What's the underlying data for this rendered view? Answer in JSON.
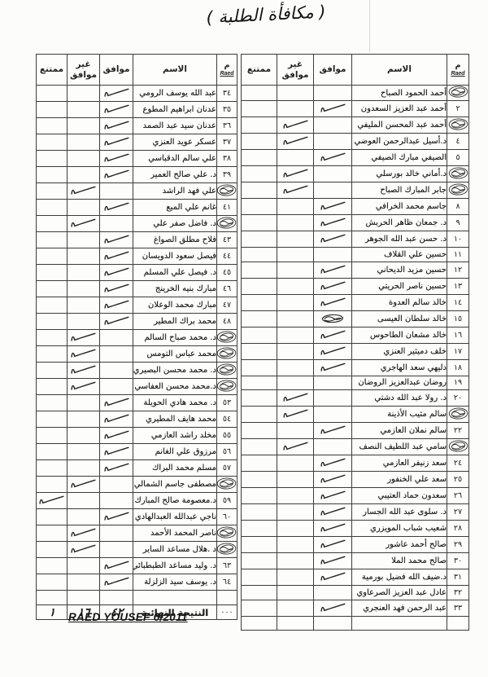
{
  "page": {
    "handwritten_title": "( مكافأة الطلبة )",
    "footer_signature": "RAED YOUSEF 6/2011"
  },
  "table": {
    "headers": {
      "num": "م",
      "num_sub": "Raed",
      "name": "الاسم",
      "agree": "موافق",
      "disagree": "غير موافق",
      "abstain": "ممتنع"
    }
  },
  "right_table": {
    "rows": [
      {
        "num": "stamp",
        "name": "أحمد الحمود الصباح",
        "vote": ""
      },
      {
        "num": "٢",
        "name": "أحمد عبد العزيز السعدون",
        "vote": "agree"
      },
      {
        "num": "stamp",
        "name": "أحمد عبد المحسن المليفي",
        "vote": "disagree"
      },
      {
        "num": "٤",
        "name": "د.أسيل عبدالرحمن العوضي",
        "vote": "disagree"
      },
      {
        "num": "٥",
        "name": "الصيفي مبارك الصيفي",
        "vote": "agree"
      },
      {
        "num": "stamp",
        "name": "د.أماني خالد بورسلي",
        "vote": "disagree"
      },
      {
        "num": "stamp",
        "name": "جابر المبارك الصباح",
        "vote": "disagree"
      },
      {
        "num": "٨",
        "name": "جاسم محمد الخرافي",
        "vote": "agree"
      },
      {
        "num": "٩",
        "name": "د. جمعان ظاهر الحربش",
        "vote": "agree"
      },
      {
        "num": "١٠",
        "name": "د. حسن عبد الله الجوهر",
        "vote": "agree"
      },
      {
        "num": "١١",
        "name": "حسين علي القلاف",
        "vote": ""
      },
      {
        "num": "١٢",
        "name": "حسين مزيد الديحاني",
        "vote": "agree"
      },
      {
        "num": "١٣",
        "name": "حسين ناصر الحريتي",
        "vote": "agree"
      },
      {
        "num": "١٤",
        "name": "خالد سالم العدوة",
        "vote": "agree"
      },
      {
        "num": "١٥",
        "name": "خالد سلطان العيسى",
        "vote": "agree",
        "mark": "scribble"
      },
      {
        "num": "١٦",
        "name": "خالد مشعان الطاحوس",
        "vote": "agree"
      },
      {
        "num": "١٧",
        "name": "خلف دميثير العنزي",
        "vote": "agree"
      },
      {
        "num": "١٨",
        "name": "دليهي سعد الهاجري",
        "vote": "agree"
      },
      {
        "num": "١٩",
        "name": "روضان عبدالعزيز الروضان",
        "vote": ""
      },
      {
        "num": "٢٠",
        "name": "د. رولا عبد الله دشتي",
        "vote": "disagree"
      },
      {
        "num": "stamp",
        "name": "سالم مثيب الأذينة",
        "vote": "disagree"
      },
      {
        "num": "٢٢",
        "name": "سالم نملان العازمي",
        "vote": "agree"
      },
      {
        "num": "stamp",
        "name": "سامي عبد اللطيف النصف",
        "vote": "disagree"
      },
      {
        "num": "٢٤",
        "name": "سعد زنيفر العازمي",
        "vote": "agree"
      },
      {
        "num": "٢٥",
        "name": "سعد علي الخنفور",
        "vote": "agree"
      },
      {
        "num": "٢٦",
        "name": "سعدون حماد العتيبي",
        "vote": "agree"
      },
      {
        "num": "٢٧",
        "name": "د. سلوى عبد الله الجسار",
        "vote": "agree"
      },
      {
        "num": "٢٨",
        "name": "شعيب شباب المويزري",
        "vote": "agree"
      },
      {
        "num": "٢٩",
        "name": "صالح أحمد عاشور",
        "vote": "agree"
      },
      {
        "num": "٣٠",
        "name": "صالح محمد الملا",
        "vote": "agree"
      },
      {
        "num": "٣١",
        "name": "د.ضيف الله فضيل بورمية",
        "vote": "agree"
      },
      {
        "num": "٣٢",
        "name": "عادل عبد العزيز الصرعاوي",
        "vote": ""
      },
      {
        "num": "٣٣",
        "name": "عبد الرحمن فهد العنجري",
        "vote": "agree"
      },
      {
        "num": "",
        "name": "",
        "vote": ""
      }
    ]
  },
  "left_table": {
    "rows": [
      {
        "num": "٣٤",
        "name": "عبد الله يوسف الرومي",
        "vote": "agree"
      },
      {
        "num": "٣٥",
        "name": "عدنان ابراهيم المطوع",
        "vote": "agree"
      },
      {
        "num": "٣٦",
        "name": "عدنان سيد عبد الصمد",
        "vote": "agree"
      },
      {
        "num": "٣٧",
        "name": "عسكر عويد العنزي",
        "vote": "agree"
      },
      {
        "num": "٣٨",
        "name": "علي سالم الدقباسي",
        "vote": "agree"
      },
      {
        "num": "٣٩",
        "name": "د. علي صالح العمير",
        "vote": "agree"
      },
      {
        "num": "stamp",
        "name": "علي فهد الراشد",
        "vote": "disagree"
      },
      {
        "num": "٤١",
        "name": "غانم علي الميع",
        "vote": "agree"
      },
      {
        "num": "stamp",
        "name": "د. فاضل صفر علي",
        "vote": "disagree"
      },
      {
        "num": "٤٣",
        "name": "فلاح مطلق الصواغ",
        "vote": "agree"
      },
      {
        "num": "٤٤",
        "name": "فيصل سعود الدويسان",
        "vote": "agree"
      },
      {
        "num": "٤٥",
        "name": "د. فيصل علي المسلم",
        "vote": "agree"
      },
      {
        "num": "٤٦",
        "name": "مبارك بنيه الخرينج",
        "vote": "agree"
      },
      {
        "num": "٤٧",
        "name": "مبارك محمد الوعلان",
        "vote": "agree"
      },
      {
        "num": "٤٨",
        "name": "محمد براك المطير",
        "vote": "agree"
      },
      {
        "num": "stamp",
        "name": "د. محمد صباح السالم",
        "vote": "disagree"
      },
      {
        "num": "stamp",
        "name": "محمد عباس التومس",
        "vote": "disagree"
      },
      {
        "num": "stamp",
        "name": "د. محمد محسن البصيري",
        "vote": "disagree"
      },
      {
        "num": "stamp",
        "name": "د.محمد محسن العفاسي",
        "vote": "disagree"
      },
      {
        "num": "٥٣",
        "name": "د. محمد هادي الحويلة",
        "vote": "agree"
      },
      {
        "num": "٥٤",
        "name": "محمد هايف المطيري",
        "vote": "agree"
      },
      {
        "num": "٥٥",
        "name": "مخلد راشد العازمي",
        "vote": "agree"
      },
      {
        "num": "٥٦",
        "name": "مرزوق علي الغانم",
        "vote": "agree"
      },
      {
        "num": "٥٧",
        "name": "مسلم محمد البراك",
        "vote": "agree"
      },
      {
        "num": "stamp",
        "name": "مصطفى جاسم الشمالي",
        "vote": "disagree"
      },
      {
        "num": "٥٩",
        "name": "د.معصومة صالح المبارك",
        "vote": "abstain"
      },
      {
        "num": "٦٠",
        "name": "ناجي عبدالله العبدالهادي",
        "vote": "agree"
      },
      {
        "num": "stamp",
        "name": "ناصر المحمد الأحمد",
        "vote": "disagree"
      },
      {
        "num": "stamp",
        "name": "د .هلال مساعد الساير",
        "vote": "disagree"
      },
      {
        "num": "٦٣",
        "name": "د. وليد مساعد الطبطبائي",
        "vote": "agree"
      },
      {
        "num": "٦٤",
        "name": "د. يوسف سيد الزلزلة",
        "vote": "agree"
      },
      {
        "num": "",
        "name": "",
        "vote": ""
      }
    ],
    "total_row": {
      "num": "٠٠٠",
      "label": "النتيجة النهائية",
      "agree": "٤٢",
      "disagree": "١٦",
      "abstain": "١"
    }
  }
}
